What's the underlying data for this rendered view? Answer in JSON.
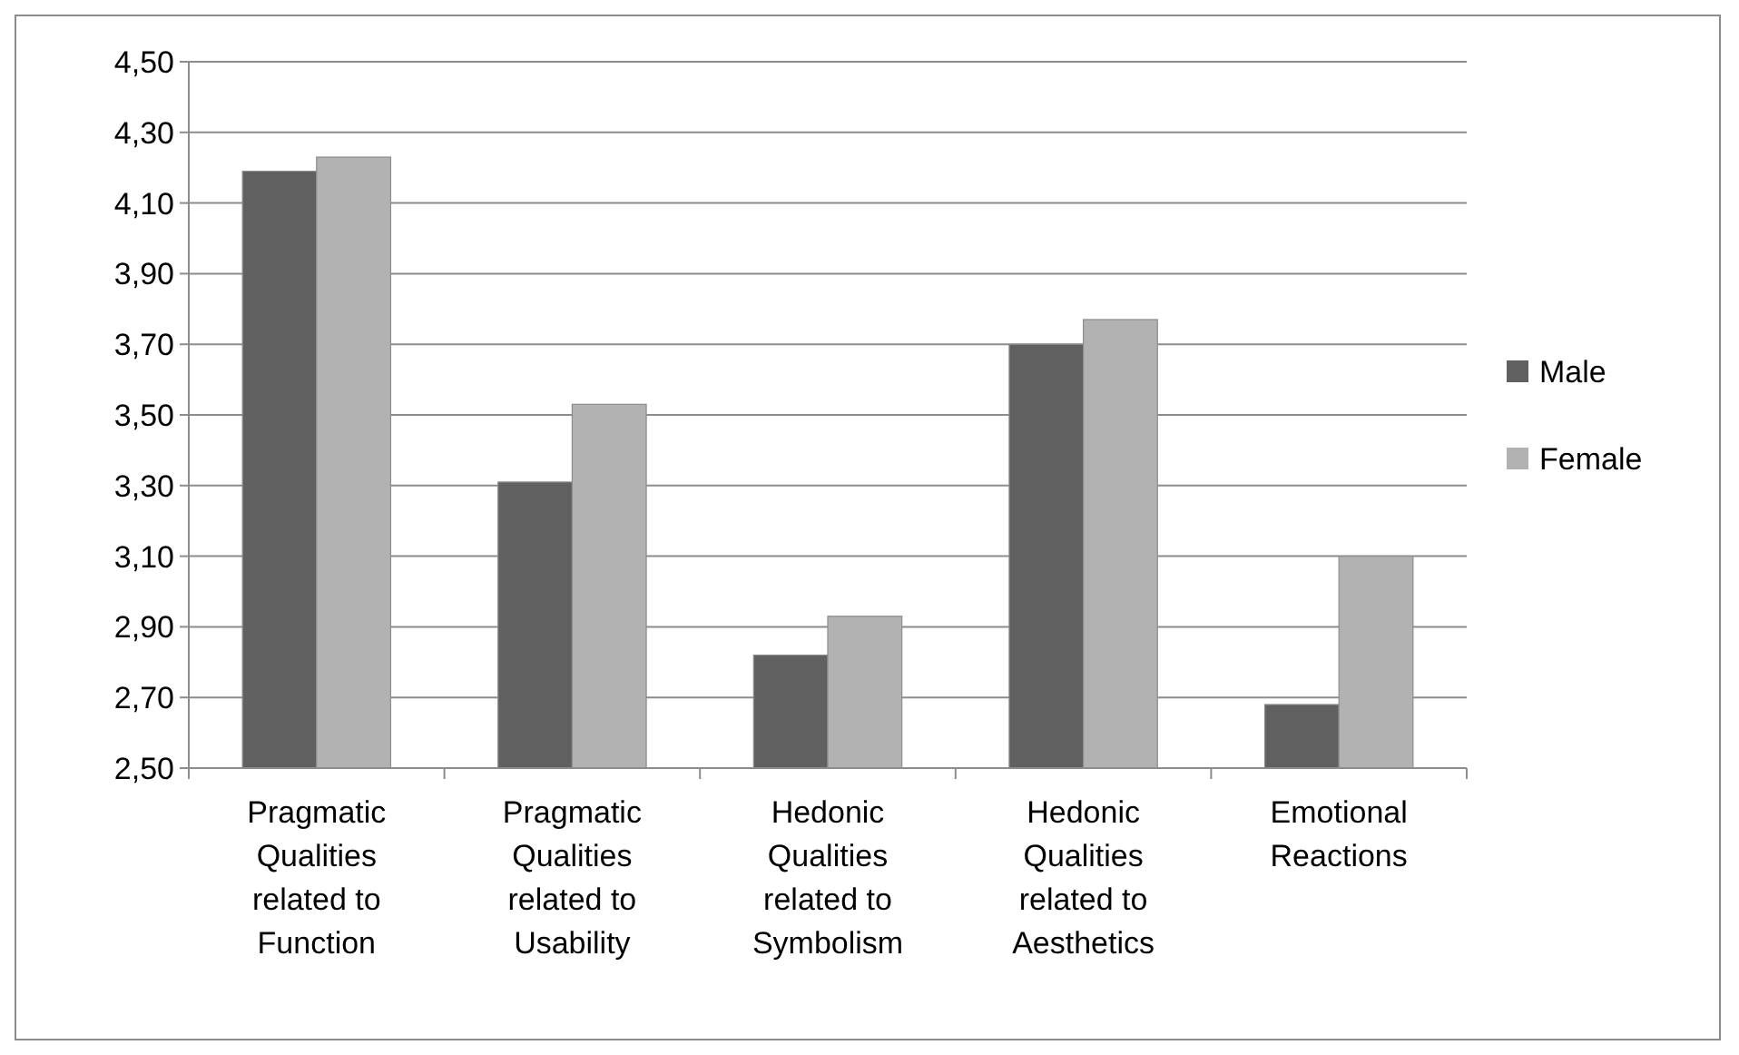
{
  "chart_data": {
    "type": "bar",
    "categories": [
      "Pragmatic Qualities related to Function",
      "Pragmatic Qualities related to Usability",
      "Hedonic Qualities related to Symbolism",
      "Hedonic Qualities related to Aesthetics",
      "Emotional Reactions"
    ],
    "series": [
      {
        "name": "Male",
        "color": "#606060",
        "values": [
          4.19,
          3.31,
          2.82,
          3.7,
          2.68
        ]
      },
      {
        "name": "Female",
        "color": "#b2b2b2",
        "values": [
          4.23,
          3.53,
          2.93,
          3.77,
          3.1
        ]
      }
    ],
    "ylim": [
      2.5,
      4.5
    ],
    "yticks": [
      {
        "value": 2.5,
        "label": "2,50"
      },
      {
        "value": 2.7,
        "label": "2,70"
      },
      {
        "value": 2.9,
        "label": "2,90"
      },
      {
        "value": 3.1,
        "label": "3,10"
      },
      {
        "value": 3.3,
        "label": "3,30"
      },
      {
        "value": 3.5,
        "label": "3,50"
      },
      {
        "value": 3.7,
        "label": "3,70"
      },
      {
        "value": 3.9,
        "label": "3,90"
      },
      {
        "value": 4.1,
        "label": "4,10"
      },
      {
        "value": 4.3,
        "label": "4,30"
      },
      {
        "value": 4.5,
        "label": "4,50"
      }
    ],
    "grid": "y",
    "legend": "right"
  }
}
